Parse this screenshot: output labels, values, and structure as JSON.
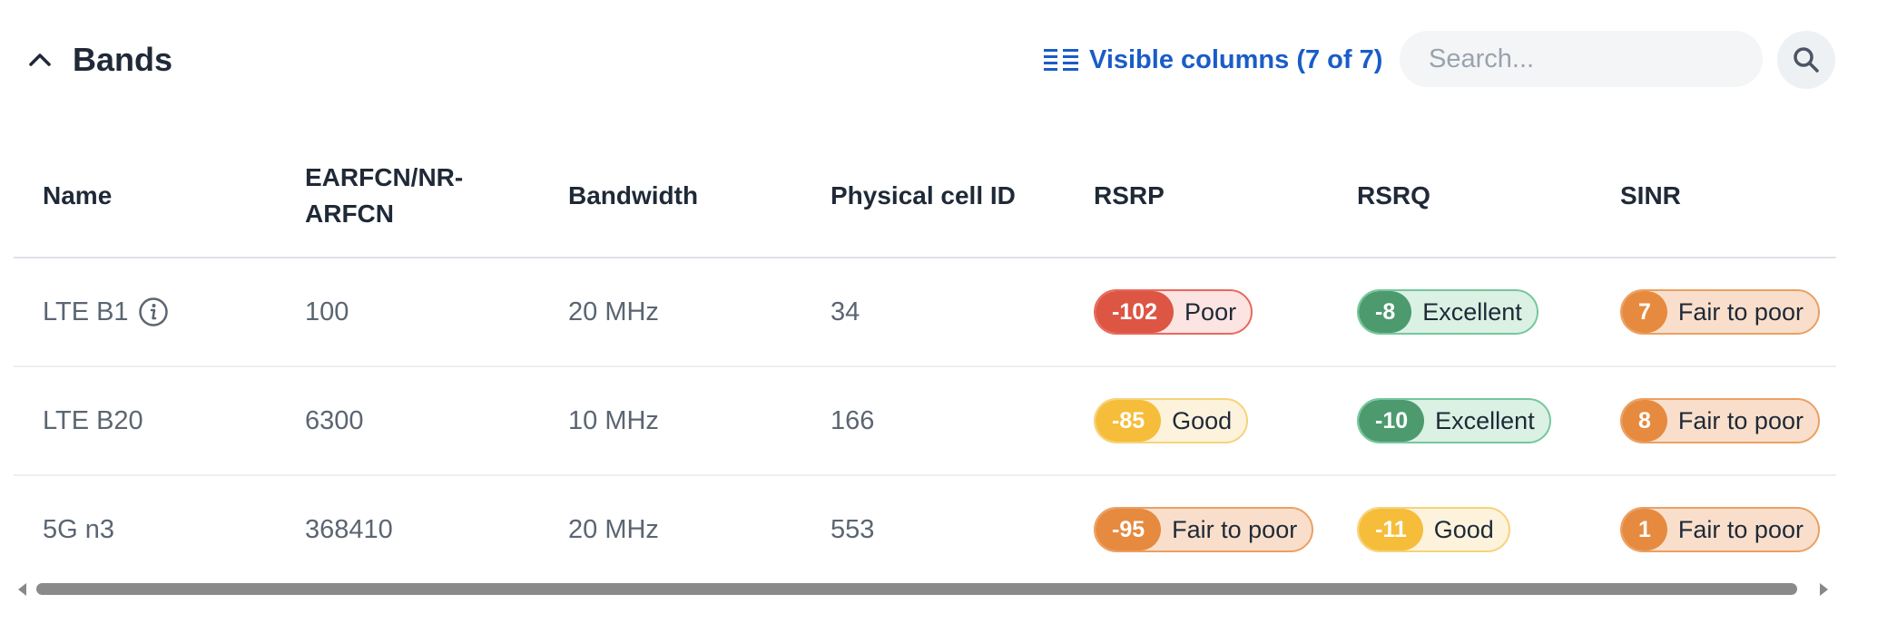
{
  "header": {
    "title": "Bands",
    "visible_columns_label": "Visible columns (7 of 7)",
    "search_placeholder": "Search..."
  },
  "columns": [
    "Name",
    "EARFCN/NR-ARFCN",
    "Bandwidth",
    "Physical cell ID",
    "RSRP",
    "RSRQ",
    "SINR"
  ],
  "rows": [
    {
      "name": "LTE B1",
      "has_info": true,
      "earfcn": "100",
      "bandwidth": "20 MHz",
      "pci": "34",
      "rsrp": {
        "value": "-102",
        "label": "Poor",
        "level": "poor"
      },
      "rsrq": {
        "value": "-8",
        "label": "Excellent",
        "level": "excellent"
      },
      "sinr": {
        "value": "7",
        "label": "Fair to poor",
        "level": "fair"
      }
    },
    {
      "name": "LTE B20",
      "has_info": false,
      "earfcn": "6300",
      "bandwidth": "10 MHz",
      "pci": "166",
      "rsrp": {
        "value": "-85",
        "label": "Good",
        "level": "good"
      },
      "rsrq": {
        "value": "-10",
        "label": "Excellent",
        "level": "excellent"
      },
      "sinr": {
        "value": "8",
        "label": "Fair to poor",
        "level": "fair"
      }
    },
    {
      "name": "5G n3",
      "has_info": false,
      "earfcn": "368410",
      "bandwidth": "20 MHz",
      "pci": "553",
      "rsrp": {
        "value": "-95",
        "label": "Fair to poor",
        "level": "fair"
      },
      "rsrq": {
        "value": "-11",
        "label": "Good",
        "level": "good"
      },
      "sinr": {
        "value": "1",
        "label": "Fair to poor",
        "level": "fair"
      }
    }
  ],
  "colors": {
    "poor": "#dc5643",
    "good": "#f6bd3b",
    "fair_to_poor": "#e68a3f",
    "excellent": "#4c9a6e",
    "link": "#1a5cc8"
  },
  "icons": [
    "chevron-up-icon",
    "columns-list-icon",
    "search-icon",
    "info-icon"
  ]
}
